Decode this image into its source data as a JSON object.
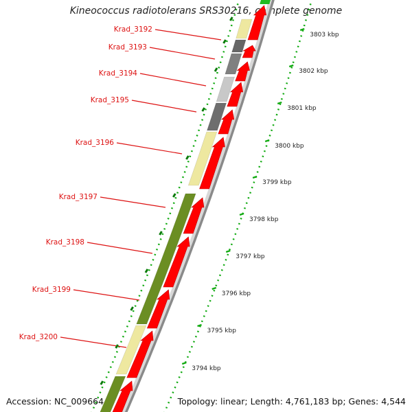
{
  "title": "Kineococcus radiotolerans SRS30216, complete genome",
  "footer": {
    "accession": "Accession: NC_009664",
    "topology": "Topology: linear; Length: 4,761,183 bp; Genes: 4,544"
  },
  "colors": {
    "forward_gene": "#ff0000",
    "reverse_olive": "#6b8e23",
    "reverse_yellow": "#eee8a0",
    "reverse_gray": "#808080",
    "reverse_lightgray": "#c8c8c8",
    "reverse_darkgray": "#555555",
    "backbone": "#999999",
    "tick_dots": "#11aa11",
    "label": "#dd1111"
  },
  "kbp_ticks": [
    "3803 kbp",
    "3802 kbp",
    "3801 kbp",
    "3800 kbp",
    "3799 kbp",
    "3798 kbp",
    "3797 kbp",
    "3796 kbp",
    "3795 kbp",
    "3794 kbp"
  ],
  "genes": [
    {
      "name": "Krad_3192",
      "color": "#eee8a0"
    },
    {
      "name": "Krad_3193",
      "color": "#666666"
    },
    {
      "name": "Krad_3194",
      "color": "#808080"
    },
    {
      "name": "Krad_3195",
      "color": "#c8c8c8"
    },
    {
      "name": "Krad_3196",
      "color": "#eee8a0"
    },
    {
      "name": "Krad_3197",
      "color": "#6b8e23"
    },
    {
      "name": "Krad_3198",
      "color": "#6b8e23"
    },
    {
      "name": "Krad_3199",
      "color": "#6b8e23"
    },
    {
      "name": "Krad_3200",
      "color": "#eee8a0"
    }
  ]
}
